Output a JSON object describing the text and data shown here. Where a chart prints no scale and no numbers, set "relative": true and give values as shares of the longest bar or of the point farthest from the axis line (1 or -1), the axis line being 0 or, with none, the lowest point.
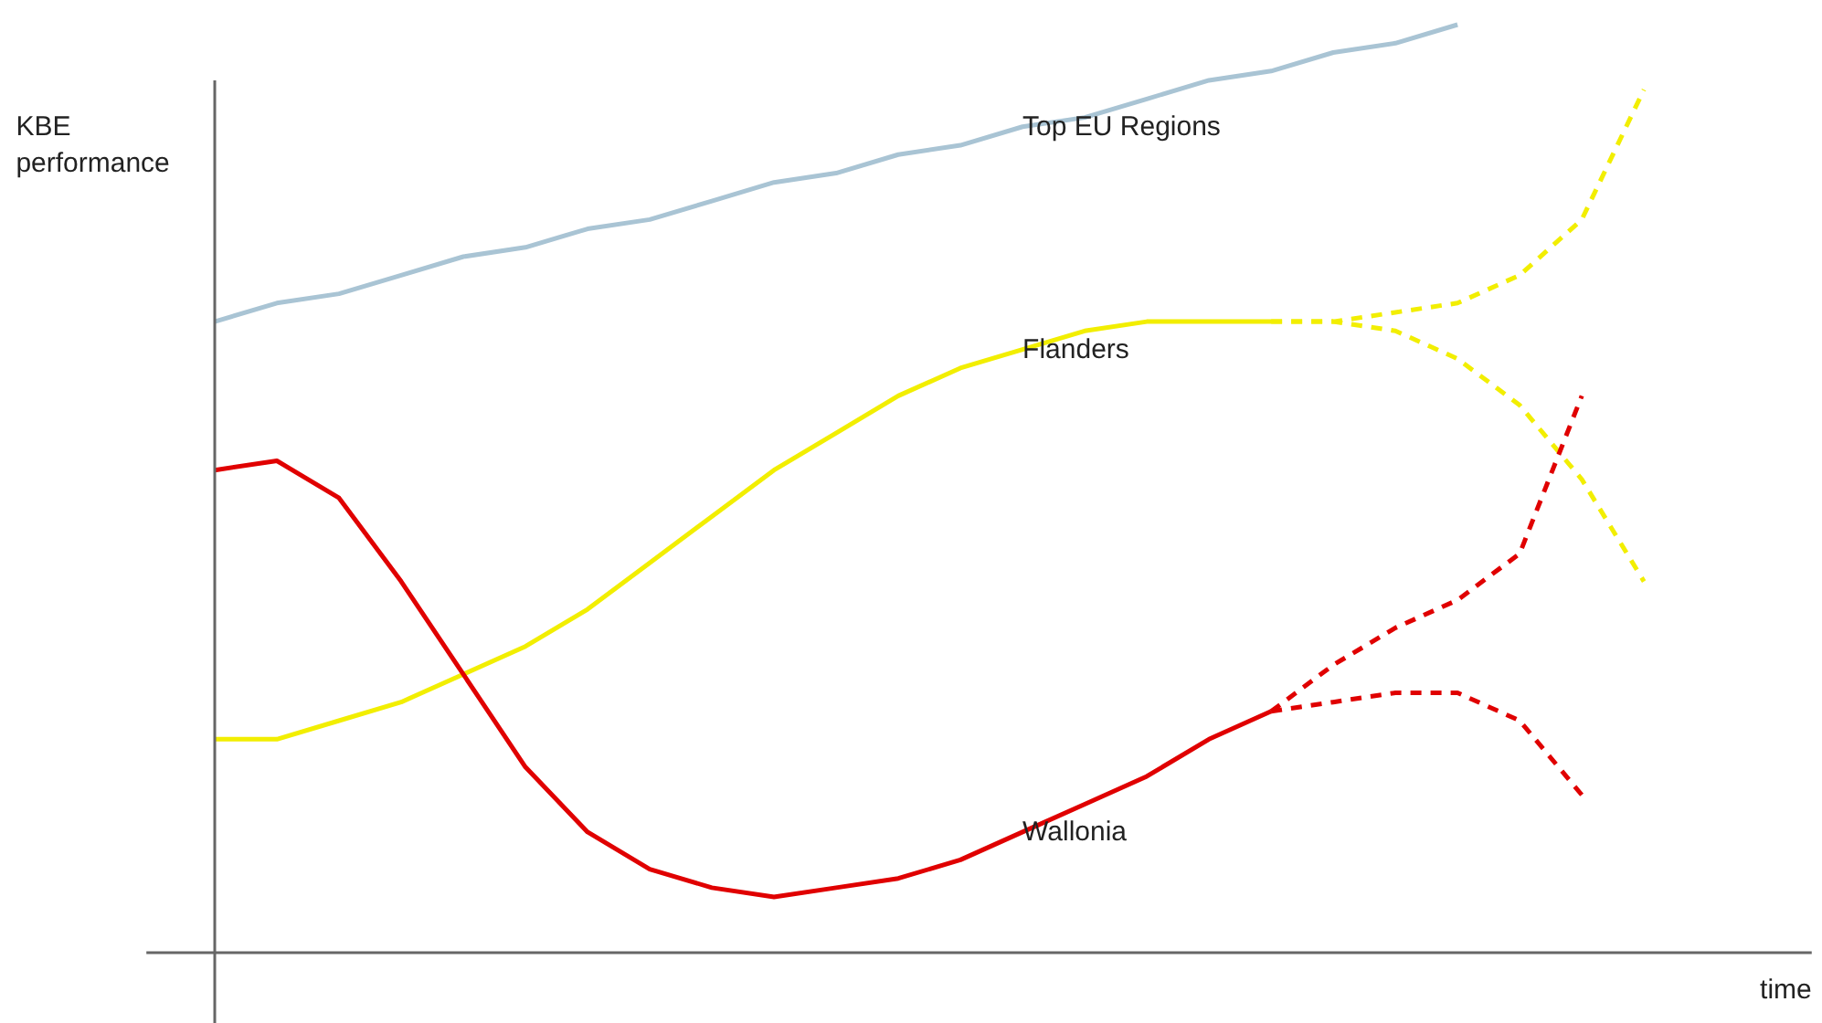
{
  "chart_data": {
    "type": "line",
    "relative": true,
    "xlabel": "time",
    "ylabel": "KBE performance",
    "legend": false,
    "grid": false,
    "marker": "none",
    "categories": [
      null,
      null,
      null,
      null,
      null,
      null,
      null,
      null,
      null,
      null,
      null,
      null,
      null,
      null,
      null,
      null,
      null,
      null,
      null,
      null,
      null,
      null,
      null,
      null
    ],
    "series": [
      {
        "name": "Top EU Regions",
        "color": "#a9c4d4",
        "line_style": "solid",
        "values": [
          0.68,
          0.7,
          0.71,
          0.73,
          0.75,
          0.76,
          0.78,
          0.79,
          0.81,
          0.83,
          0.84,
          0.86,
          0.87,
          0.89,
          0.9,
          0.92,
          0.94,
          0.95,
          0.97,
          0.98,
          1.0,
          null,
          null,
          null
        ]
      },
      {
        "name": "Flanders",
        "color": "#f2ee00",
        "line_style": "solid",
        "values": [
          0.23,
          0.23,
          0.25,
          0.27,
          0.3,
          0.33,
          0.37,
          0.42,
          0.47,
          0.52,
          0.56,
          0.6,
          0.63,
          0.65,
          0.67,
          0.68,
          0.68,
          0.68,
          null,
          null,
          null,
          null,
          null,
          null
        ]
      },
      {
        "color": "#f2ee00",
        "line_style": "dashed",
        "values": [
          null,
          null,
          null,
          null,
          null,
          null,
          null,
          null,
          null,
          null,
          null,
          null,
          null,
          null,
          null,
          null,
          null,
          0.68,
          0.68,
          0.69,
          0.7,
          0.73,
          0.79,
          0.93
        ]
      },
      {
        "color": "#f2ee00",
        "line_style": "dashed",
        "values": [
          null,
          null,
          null,
          null,
          null,
          null,
          null,
          null,
          null,
          null,
          null,
          null,
          null,
          null,
          null,
          null,
          null,
          0.68,
          0.68,
          0.67,
          0.64,
          0.59,
          0.51,
          0.4
        ]
      },
      {
        "name": "Wallonia",
        "color": "#e00000",
        "line_style": "solid",
        "values": [
          0.52,
          0.53,
          0.49,
          0.4,
          0.3,
          0.2,
          0.13,
          0.09,
          0.07,
          0.06,
          0.07,
          0.08,
          0.1,
          0.13,
          0.16,
          0.19,
          0.23,
          0.26,
          null,
          null,
          null,
          null,
          null,
          null
        ]
      },
      {
        "color": "#e00000",
        "line_style": "dashed",
        "values": [
          null,
          null,
          null,
          null,
          null,
          null,
          null,
          null,
          null,
          null,
          null,
          null,
          null,
          null,
          null,
          null,
          null,
          0.26,
          0.31,
          0.35,
          0.38,
          0.43,
          0.6,
          null
        ]
      },
      {
        "color": "#e00000",
        "line_style": "dashed",
        "values": [
          null,
          null,
          null,
          null,
          null,
          null,
          null,
          null,
          null,
          null,
          null,
          null,
          null,
          null,
          null,
          null,
          null,
          0.26,
          0.27,
          0.28,
          0.28,
          0.25,
          0.17,
          null
        ]
      }
    ]
  }
}
